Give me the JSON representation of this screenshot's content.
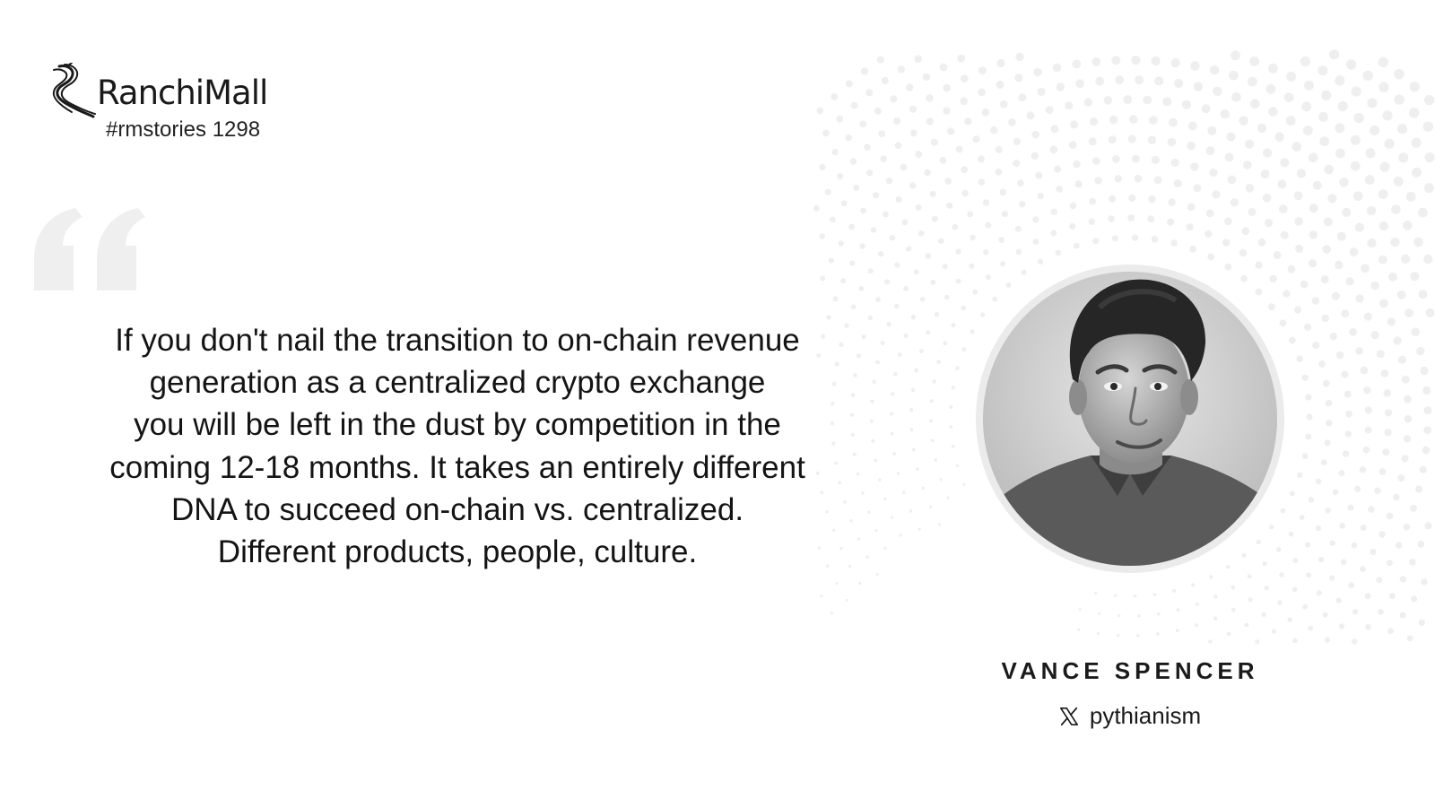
{
  "brand": {
    "name": "RanchiMall",
    "hashtag": "#rmstories 1298",
    "logo_icon": "ranchimall-logo-icon"
  },
  "quote": {
    "mark_icon": "quotation-mark-icon",
    "lines": [
      "If you don't nail the transition to on-chain revenue",
      "generation as a centralized crypto exchange",
      "you will be left in the dust by competition in the",
      "coming 12-18 months. It takes an entirely different",
      "DNA to succeed on-chain vs. centralized.",
      "Different products, people, culture."
    ]
  },
  "author": {
    "name": "VANCE  SPENCER",
    "handle": "pythianism",
    "social_icon": "x-logo-icon",
    "photo": "portrait-photo"
  },
  "colors": {
    "background": "#ffffff",
    "text": "#1a1a1a",
    "quote_mark": "#efefef",
    "dots": "#efefef"
  }
}
